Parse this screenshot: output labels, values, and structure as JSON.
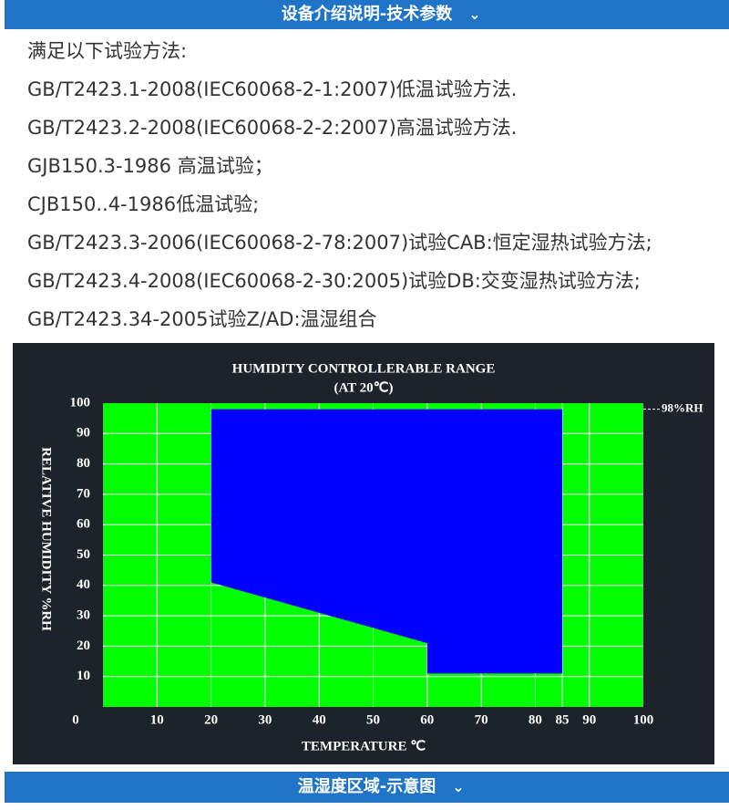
{
  "header": {
    "title": "设备介绍说明-技术参数"
  },
  "intro": "满足以下试验方法:",
  "standards": [
    "GB/T2423.1-2008(IEC60068-2-1:2007)低温试验方法.",
    "GB/T2423.2-2008(IEC60068-2-2:2007)高温试验方法.",
    "GJB150.3-1986 高温试验；",
    "CJB150..4-1986低温试验;",
    "GB/T2423.3-2006(IEC60068-2-78:2007)试验CAB:恒定湿热试验方法;",
    "GB/T2423.4-2008(IEC60068-2-30:2005)试验DB:交变湿热试验方法;",
    "GB/T2423.34-2005试验Z/AD:温湿组合"
  ],
  "chart_data": {
    "type": "area",
    "title": "HUMIDITY CONTROLLERABLE RANGE",
    "subtitle": "(AT 20℃)",
    "x_label": "TEMPERATURE ℃",
    "y_label": "RELATIVE HUMIDITY %RH",
    "xlim": [
      0,
      100
    ],
    "ylim": [
      0,
      100
    ],
    "xticks": [
      0,
      10,
      20,
      30,
      40,
      50,
      60,
      70,
      80,
      85,
      90,
      100
    ],
    "yticks": [
      10,
      20,
      30,
      40,
      50,
      60,
      70,
      80,
      90,
      100
    ],
    "x": [
      20,
      85,
      85,
      60,
      60,
      20
    ],
    "values": [
      98,
      98,
      11,
      11,
      21,
      41
    ],
    "color": "#0000ff",
    "background": "#00ff00",
    "grid": true,
    "annotation": {
      "label": "98%RH",
      "value": 98
    }
  },
  "footer": {
    "title": "温湿度区域-示意图"
  }
}
